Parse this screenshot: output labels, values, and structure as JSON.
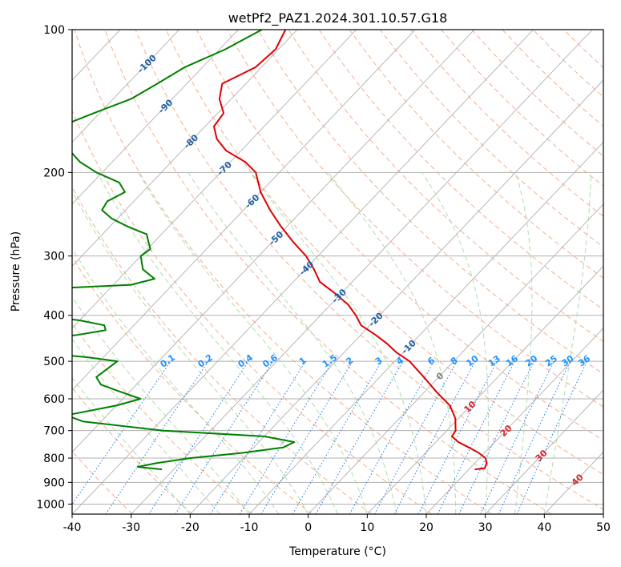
{
  "chart_data": {
    "type": "line",
    "subtype": "skew-t log-p diagram",
    "title": "wetPf2_PAZ1.2024.301.10.57.G18",
    "xlabel": "Temperature (°C)",
    "ylabel": "Pressure (hPa)",
    "xlim": [
      -40,
      50
    ],
    "ylim": [
      1050,
      100
    ],
    "y_scale": "log",
    "x_ticks": [
      -40,
      -30,
      -20,
      -10,
      0,
      10,
      20,
      30,
      40,
      50
    ],
    "y_ticks": [
      100,
      200,
      300,
      400,
      500,
      600,
      700,
      800,
      900,
      1000
    ],
    "grid": true,
    "isotherm_labels": [
      "-100",
      "-90",
      "-80",
      "-70",
      "-60",
      "-50",
      "-40",
      "-30",
      "-20",
      "-10",
      "0",
      "10",
      "20",
      "30",
      "40"
    ],
    "mixing_ratio_labels": [
      "0.1",
      "0.2",
      "0.4",
      "0.6",
      "1",
      "1.5",
      "2",
      "3",
      "4",
      "6",
      "8",
      "10",
      "13",
      "16",
      "20",
      "25",
      "30",
      "36"
    ],
    "series": [
      {
        "kind": "temperature",
        "color": "#e00000",
        "points": [
          {
            "p": 100,
            "t": -82
          },
          {
            "p": 110,
            "t": -80.5
          },
          {
            "p": 120,
            "t": -81
          },
          {
            "p": 130,
            "t": -84
          },
          {
            "p": 140,
            "t": -82
          },
          {
            "p": 150,
            "t": -79
          },
          {
            "p": 160,
            "t": -78.5
          },
          {
            "p": 170,
            "t": -76
          },
          {
            "p": 180,
            "t": -72.5
          },
          {
            "p": 190,
            "t": -67.5
          },
          {
            "p": 200,
            "t": -64
          },
          {
            "p": 220,
            "t": -60
          },
          {
            "p": 240,
            "t": -55.5
          },
          {
            "p": 260,
            "t": -51
          },
          {
            "p": 280,
            "t": -46.5
          },
          {
            "p": 300,
            "t": -42
          },
          {
            "p": 320,
            "t": -38.5
          },
          {
            "p": 340,
            "t": -35.5
          },
          {
            "p": 360,
            "t": -31
          },
          {
            "p": 380,
            "t": -27
          },
          {
            "p": 400,
            "t": -24
          },
          {
            "p": 420,
            "t": -21.5
          },
          {
            "p": 440,
            "t": -17.5
          },
          {
            "p": 460,
            "t": -14
          },
          {
            "p": 480,
            "t": -11
          },
          {
            "p": 500,
            "t": -7.5
          },
          {
            "p": 540,
            "t": -2.5
          },
          {
            "p": 580,
            "t": 2
          },
          {
            "p": 620,
            "t": 6.5
          },
          {
            "p": 660,
            "t": 9.5
          },
          {
            "p": 700,
            "t": 11.5
          },
          {
            "p": 720,
            "t": 11.8
          },
          {
            "p": 740,
            "t": 13.8
          },
          {
            "p": 760,
            "t": 16.5
          },
          {
            "p": 780,
            "t": 19
          },
          {
            "p": 800,
            "t": 21
          },
          {
            "p": 820,
            "t": 22
          },
          {
            "p": 840,
            "t": 22.5
          },
          {
            "p": 845,
            "t": 21
          }
        ]
      },
      {
        "kind": "dewpoint",
        "color": "#008000",
        "points": [
          {
            "p": 100,
            "t": -86
          },
          {
            "p": 110,
            "t": -89
          },
          {
            "p": 120,
            "t": -93
          },
          {
            "p": 130,
            "t": -95
          },
          {
            "p": 140,
            "t": -97
          },
          {
            "p": 150,
            "t": -101
          },
          {
            "p": 160,
            "t": -104.5
          },
          {
            "p": 170,
            "t": -103
          },
          {
            "p": 180,
            "t": -99
          },
          {
            "p": 190,
            "t": -95.5
          },
          {
            "p": 200,
            "t": -91
          },
          {
            "p": 210,
            "t": -85.5
          },
          {
            "p": 220,
            "t": -83
          },
          {
            "p": 230,
            "t": -84.5
          },
          {
            "p": 240,
            "t": -84
          },
          {
            "p": 250,
            "t": -81
          },
          {
            "p": 260,
            "t": -77
          },
          {
            "p": 270,
            "t": -72.5
          },
          {
            "p": 280,
            "t": -71
          },
          {
            "p": 290,
            "t": -69.5
          },
          {
            "p": 300,
            "t": -70
          },
          {
            "p": 320,
            "t": -67.5
          },
          {
            "p": 335,
            "t": -64
          },
          {
            "p": 345,
            "t": -67
          },
          {
            "p": 355,
            "t": -87
          },
          {
            "p": 360,
            "t": -104
          },
          {
            "p": 370,
            "t": -110
          },
          {
            "p": 390,
            "t": -110
          },
          {
            "p": 395,
            "t": -95
          },
          {
            "p": 400,
            "t": -78
          },
          {
            "p": 410,
            "t": -70
          },
          {
            "p": 420,
            "t": -65
          },
          {
            "p": 430,
            "t": -64
          },
          {
            "p": 440,
            "t": -68
          },
          {
            "p": 450,
            "t": -75
          },
          {
            "p": 460,
            "t": -81
          },
          {
            "p": 470,
            "t": -80
          },
          {
            "p": 480,
            "t": -72
          },
          {
            "p": 490,
            "t": -63
          },
          {
            "p": 500,
            "t": -57
          },
          {
            "p": 520,
            "t": -57.5
          },
          {
            "p": 540,
            "t": -58
          },
          {
            "p": 560,
            "t": -56
          },
          {
            "p": 580,
            "t": -51.5
          },
          {
            "p": 600,
            "t": -47
          },
          {
            "p": 620,
            "t": -50
          },
          {
            "p": 650,
            "t": -57
          },
          {
            "p": 670,
            "t": -53
          },
          {
            "p": 700,
            "t": -38
          },
          {
            "p": 720,
            "t": -20
          },
          {
            "p": 740,
            "t": -14
          },
          {
            "p": 760,
            "t": -15
          },
          {
            "p": 780,
            "t": -21
          },
          {
            "p": 800,
            "t": -29
          },
          {
            "p": 820,
            "t": -34
          },
          {
            "p": 835,
            "t": -36.5
          },
          {
            "p": 845,
            "t": -32
          }
        ]
      }
    ]
  },
  "colors": {
    "isotherm_grid": "#b0b0b0",
    "dry_adiabat": "#f4a582",
    "moist_adiabat": "#a6d8a6",
    "mixing_ratio": "#1e78e0",
    "iso_label_blue": "#1f5fa0",
    "iso_label_red": "#d62728",
    "iso_label_gray": "#808080"
  }
}
